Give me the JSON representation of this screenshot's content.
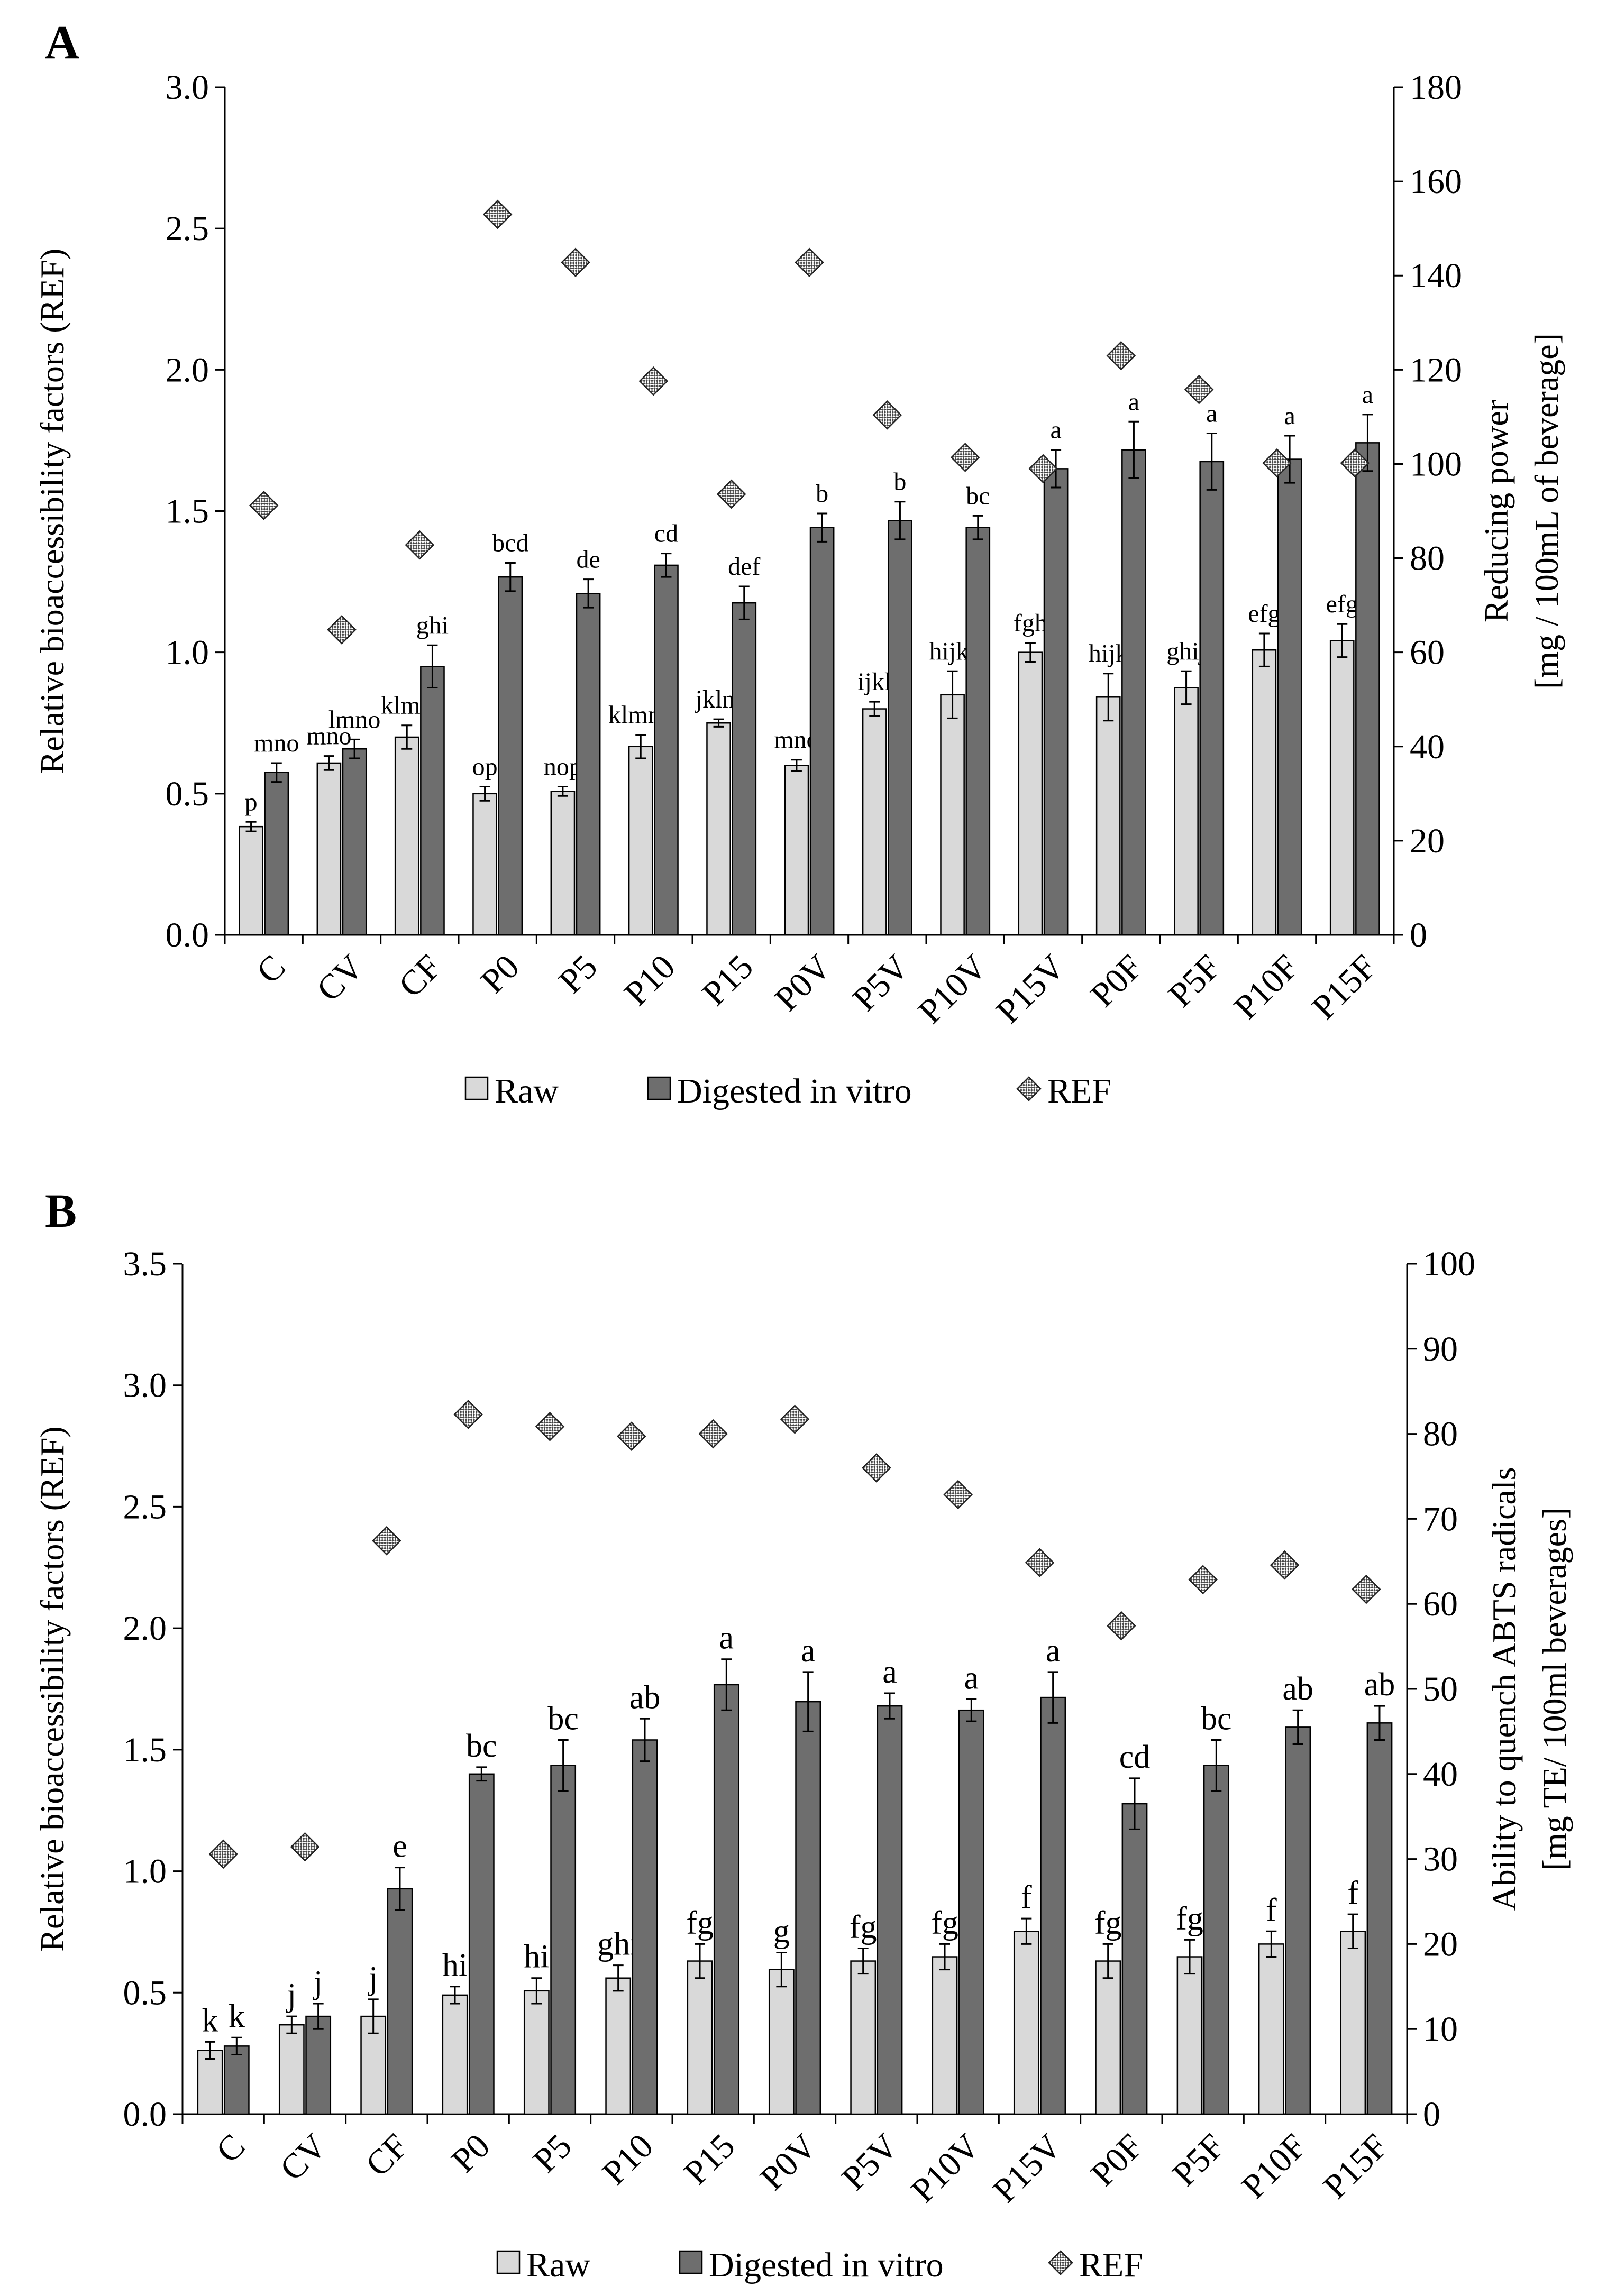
{
  "chart_data": [
    {
      "panel": "A",
      "type": "bar",
      "categories": [
        "C",
        "CV",
        "CF",
        "P0",
        "P5",
        "P10",
        "P15",
        "P0V",
        "P5V",
        "P10V",
        "P15V",
        "P0F",
        "P5F",
        "P10F",
        "P15F"
      ],
      "ylabel_left": "Relative bioaccessibility factors (REF)",
      "ylabel_right": [
        "Reducing power",
        "[mg / 100mL of beverage]"
      ],
      "ylim_left": [
        0,
        3.0
      ],
      "yticks_left": [
        "0.0",
        "0.5",
        "1.0",
        "1.5",
        "2.0",
        "2.5",
        "3.0"
      ],
      "ylim_right": [
        0,
        180
      ],
      "yticks_right": [
        "0",
        "20",
        "40",
        "60",
        "80",
        "100",
        "120",
        "140",
        "160",
        "180"
      ],
      "series": [
        {
          "name": "Raw",
          "axis": "right",
          "values": [
            23,
            36.5,
            42,
            30,
            30.5,
            40,
            45,
            36,
            48,
            51,
            60,
            50.5,
            52.5,
            60.5,
            62.5
          ],
          "errors": [
            1,
            1.5,
            2.5,
            1.5,
            1,
            2.5,
            0.8,
            1.2,
            1.5,
            5,
            2,
            5,
            3.5,
            3.5,
            3.5
          ],
          "labels": [
            "p",
            "mno",
            "klmn",
            "op",
            "nop",
            "klmno",
            "jklm",
            "mno",
            "ijkl",
            "hijkl",
            "fgh",
            "hijk",
            "ghij",
            "efg",
            "efg"
          ]
        },
        {
          "name": "Digested in vitro",
          "axis": "right",
          "values": [
            34.5,
            39.5,
            57,
            76,
            72.5,
            78.5,
            70.5,
            86.5,
            88,
            86.5,
            99,
            103,
            100.5,
            101,
            104.5
          ],
          "errors": [
            2,
            2,
            4.5,
            3,
            3,
            2.5,
            3.5,
            3,
            4,
            2.5,
            4,
            6,
            6,
            5,
            6
          ],
          "labels": [
            "mno",
            "lmno",
            "ghi",
            "bcd",
            "de",
            "cd",
            "def",
            "b",
            "b",
            "bc",
            "a",
            "a",
            "a",
            "a",
            "a"
          ]
        },
        {
          "name": "REF",
          "axis": "left",
          "values": [
            1.52,
            1.08,
            1.38,
            2.55,
            2.38,
            1.96,
            1.56,
            2.38,
            1.84,
            1.69,
            1.65,
            2.05,
            1.93,
            1.67,
            1.67
          ]
        }
      ],
      "legend": [
        "Raw",
        "Digested in vitro",
        "REF"
      ],
      "legend_position": "bottom"
    },
    {
      "panel": "B",
      "type": "bar",
      "categories": [
        "C",
        "CV",
        "CF",
        "P0",
        "P5",
        "P10",
        "P15",
        "P0V",
        "P5V",
        "P10V",
        "P15V",
        "P0F",
        "P5F",
        "P10F",
        "P15F"
      ],
      "ylabel_left": "Relative bioaccessibility factors (REF)",
      "ylabel_right": [
        "Ability to quench ABTS radicals",
        "[mg TE/ 100ml beverages]"
      ],
      "ylim_left": [
        0,
        3.5
      ],
      "yticks_left": [
        "0.0",
        "0.5",
        "1.0",
        "1.5",
        "2.0",
        "2.5",
        "3.0",
        "3.5"
      ],
      "ylim_right": [
        0,
        100
      ],
      "yticks_right": [
        "0",
        "10",
        "20",
        "30",
        "40",
        "50",
        "60",
        "70",
        "80",
        "90",
        "100"
      ],
      "series": [
        {
          "name": "Raw",
          "axis": "right",
          "values": [
            7.5,
            10.5,
            11.5,
            14,
            14.5,
            16,
            18,
            17,
            18,
            18.5,
            21.5,
            18,
            18.5,
            20,
            21.5
          ],
          "errors": [
            1,
            1,
            2,
            1,
            1.5,
            1.5,
            2,
            2,
            1.5,
            1.5,
            1.5,
            2,
            2,
            1.5,
            2
          ],
          "labels": [
            "k",
            "j",
            "j",
            "hi",
            "hi",
            "ghi",
            "fg",
            "g",
            "fg",
            "fg",
            "f",
            "fg",
            "fg",
            "f",
            "f"
          ]
        },
        {
          "name": "Digested in vitro",
          "axis": "right",
          "values": [
            8,
            11.5,
            26.5,
            40,
            41,
            44,
            50.5,
            48.5,
            48,
            47.5,
            49,
            36.5,
            41,
            45.5,
            46
          ],
          "errors": [
            1,
            1.5,
            2.5,
            0.8,
            3,
            2.5,
            3,
            3.5,
            1.5,
            1.3,
            3,
            3,
            3,
            2,
            2
          ],
          "labels": [
            "k",
            "j",
            "e",
            "bc",
            "bc",
            "ab",
            "a",
            "a",
            "a",
            "a",
            "a",
            "cd",
            "bc",
            "ab",
            "ab"
          ]
        },
        {
          "name": "REF",
          "axis": "left",
          "values": [
            1.07,
            1.1,
            2.36,
            2.88,
            2.83,
            2.79,
            2.8,
            2.86,
            2.66,
            2.55,
            2.27,
            2.01,
            2.2,
            2.26,
            2.16
          ]
        }
      ],
      "legend": [
        "Raw",
        "Digested in vitro",
        "REF"
      ],
      "legend_position": "bottom"
    }
  ]
}
